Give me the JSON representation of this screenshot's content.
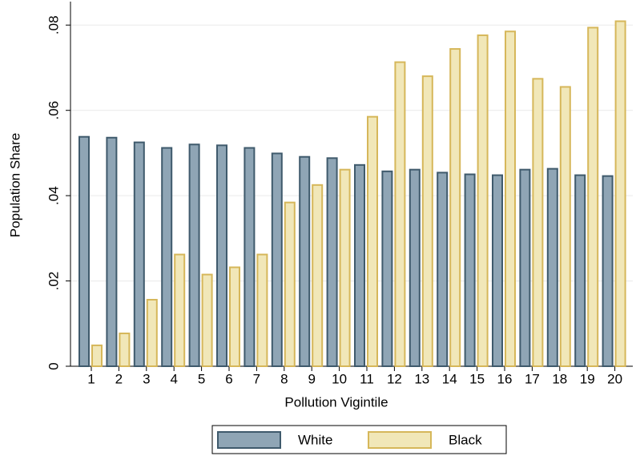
{
  "chart_data": {
    "type": "bar",
    "x_label": "Pollution Vigintile",
    "y_label": "Population Share",
    "categories": [
      "1",
      "2",
      "3",
      "4",
      "5",
      "6",
      "7",
      "8",
      "9",
      "10",
      "11",
      "12",
      "13",
      "14",
      "15",
      "16",
      "17",
      "18",
      "19",
      "20"
    ],
    "series": [
      {
        "name": "White",
        "color": "#8fa5b5",
        "edge": "#3f5a6c",
        "values": [
          0.0538,
          0.0536,
          0.0525,
          0.0512,
          0.052,
          0.0518,
          0.0512,
          0.0499,
          0.0491,
          0.0488,
          0.0472,
          0.0457,
          0.0461,
          0.0454,
          0.045,
          0.0448,
          0.0461,
          0.0463,
          0.0448,
          0.0446
        ]
      },
      {
        "name": "Black",
        "color": "#f1e7b8",
        "edge": "#d6b75a",
        "values": [
          0.0049,
          0.0077,
          0.0156,
          0.0262,
          0.0215,
          0.0232,
          0.0262,
          0.0384,
          0.0425,
          0.0461,
          0.0585,
          0.0713,
          0.068,
          0.0744,
          0.0776,
          0.0785,
          0.0674,
          0.0655,
          0.0794,
          0.0809
        ]
      }
    ],
    "ylim": [
      0,
      0.0855
    ],
    "yticks": [
      {
        "value": 0,
        "label": "0"
      },
      {
        "value": 0.02,
        "label": ".02"
      },
      {
        "value": 0.04,
        "label": ".04"
      },
      {
        "value": 0.06,
        "label": ".06"
      },
      {
        "value": 0.08,
        "label": ".08"
      }
    ],
    "grid": true
  }
}
